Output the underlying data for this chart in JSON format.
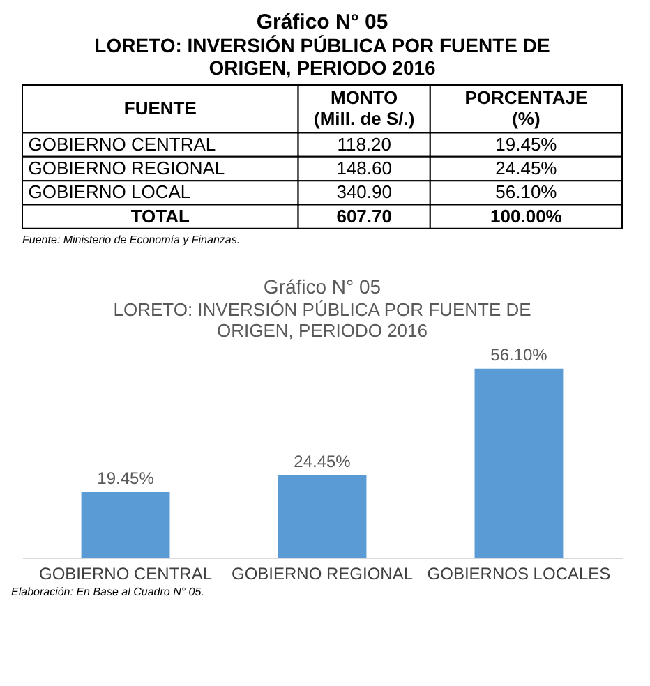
{
  "chart_data": [
    {
      "type": "other",
      "title": "Gráfico N° 05",
      "subtitle": "LORETO: INVERSIÓN PÚBLICA POR FUENTE DE ORIGEN, PERIODO 2016",
      "annotations": [
        "FUENTE",
        "MONTO (Mill. de S/.)",
        "PORCENTAJE (%)",
        "GOBIERNO CENTRAL",
        "118.20",
        "19.45%",
        "GOBIERNO REGIONAL",
        "148.60",
        "24.45%",
        "GOBIERNO LOCAL",
        "340.90",
        "56.10%",
        "TOTAL",
        "607.70",
        "100.00%",
        "Fuente: Ministerio de Economía y Finanzas."
      ]
    },
    {
      "type": "bar",
      "title": "Gráfico N° 05",
      "subtitle": "LORETO: INVERSIÓN PÚBLICA POR FUENTE DE ORIGEN, PERIODO 2016",
      "categories": [
        "GOBIERNO CENTRAL",
        "GOBIERNO REGIONAL",
        "GOBIERNOS LOCALES"
      ],
      "values": [
        19.45,
        24.45,
        56.1
      ],
      "color": "#5b9bd5",
      "value_labels": [
        "19.45%",
        "24.45%",
        "56.10%"
      ],
      "annotations": [
        "Elaboración: En Base al Cuadro N° 05."
      ]
    }
  ]
}
